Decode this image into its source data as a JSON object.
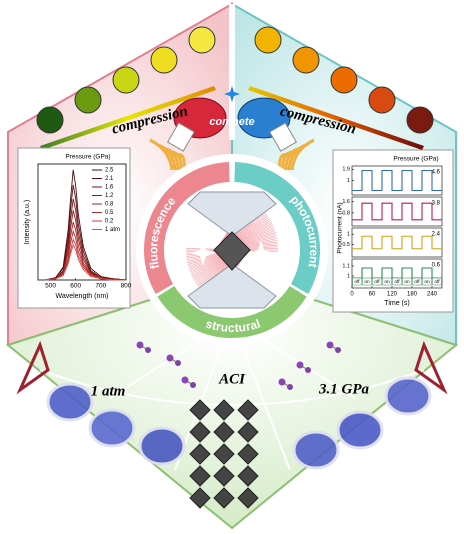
{
  "top_left": {
    "label": "compression"
  },
  "top_right": {
    "label": "compression"
  },
  "center": {
    "badge": "compete",
    "ring_left": "fluorescence",
    "ring_right": "photocurrent",
    "ring_bottom": "structural"
  },
  "bottom": {
    "left": "1 atm",
    "middle": "ACI",
    "right": "3.1 GPa"
  },
  "fluorescence_plot": {
    "type": "line",
    "legend_title": "Pressure (GPa)",
    "x_label": "Wavelength (nm)",
    "y_label": "Intensity (a.u.)",
    "xlim": [
      450,
      800
    ],
    "xticks": [
      500,
      600,
      700,
      800
    ],
    "ylim": [
      0,
      1
    ],
    "x": [
      480,
      520,
      550,
      570,
      580,
      590,
      600,
      610,
      630,
      660,
      700,
      750,
      800
    ],
    "series": [
      {
        "name": "2.5",
        "color": "#4a0a0a",
        "values": [
          0,
          0.02,
          0.11,
          0.43,
          0.71,
          0.95,
          0.81,
          0.57,
          0.29,
          0.1,
          0.03,
          0.01,
          0
        ]
      },
      {
        "name": "2.1",
        "color": "#5e0f0f",
        "values": [
          0,
          0.02,
          0.1,
          0.37,
          0.62,
          0.82,
          0.7,
          0.49,
          0.25,
          0.08,
          0.02,
          0.01,
          0
        ]
      },
      {
        "name": "1.6",
        "color": "#741414",
        "values": [
          0,
          0.01,
          0.08,
          0.32,
          0.53,
          0.7,
          0.6,
          0.42,
          0.21,
          0.07,
          0.02,
          0.01,
          0
        ]
      },
      {
        "name": "1.2",
        "color": "#8a1a1a",
        "values": [
          0,
          0.01,
          0.07,
          0.27,
          0.45,
          0.6,
          0.51,
          0.36,
          0.18,
          0.06,
          0.02,
          0.01,
          0
        ]
      },
      {
        "name": "0.8",
        "color": "#a02222",
        "values": [
          0,
          0.01,
          0.06,
          0.23,
          0.38,
          0.5,
          0.43,
          0.3,
          0.15,
          0.05,
          0.02,
          0,
          0
        ]
      },
      {
        "name": "0.5",
        "color": "#b42c2c",
        "values": [
          0,
          0.01,
          0.05,
          0.19,
          0.32,
          0.42,
          0.36,
          0.25,
          0.13,
          0.04,
          0.01,
          0,
          0
        ]
      },
      {
        "name": "0.2",
        "color": "#c83a3a",
        "values": [
          0,
          0.01,
          0.04,
          0.16,
          0.26,
          0.35,
          0.3,
          0.21,
          0.11,
          0.04,
          0.01,
          0,
          0
        ]
      },
      {
        "name": "1 atm",
        "color": "#d94a4a",
        "values": [
          0,
          0.01,
          0.04,
          0.14,
          0.23,
          0.3,
          0.26,
          0.18,
          0.09,
          0.03,
          0.01,
          0,
          0
        ]
      }
    ]
  },
  "photocurrent_plot": {
    "type": "step",
    "legend_title": "Pressure (GPa)",
    "x_label": "Time (s)",
    "y_label": "Photocurrent (nA)",
    "xlim": [
      0,
      270
    ],
    "xticks": [
      0,
      60,
      120,
      180,
      240
    ],
    "x": [
      0,
      30,
      60,
      90,
      120,
      150,
      180,
      210,
      240,
      270
    ],
    "states": [
      "off",
      "on",
      "off",
      "on",
      "off",
      "on",
      "off",
      "on",
      "off"
    ],
    "panels": [
      {
        "name": "4.6",
        "color": "#2e6ea6",
        "ylim": [
          0,
          2.0
        ],
        "yticks": [
          1.0,
          1.9
        ],
        "values": [
          0.2,
          1.8,
          0.2,
          1.8,
          0.2,
          1.8,
          0.2,
          1.8,
          0.2
        ]
      },
      {
        "name": "3.8",
        "color": "#c2185b",
        "ylim": [
          0,
          1.8
        ],
        "yticks": [
          0.8,
          1.6
        ],
        "values": [
          0.3,
          1.5,
          0.3,
          1.5,
          0.3,
          1.5,
          0.3,
          1.5,
          0.3
        ]
      },
      {
        "name": "2.4",
        "color": "#d4a017",
        "ylim": [
          0,
          1.2
        ],
        "yticks": [
          0.5,
          1.0
        ],
        "values": [
          0.3,
          0.9,
          0.3,
          0.9,
          0.3,
          0.9,
          0.3,
          0.9,
          0.3
        ]
      },
      {
        "name": "0.6",
        "color": "#2e8b57",
        "ylim": [
          0.9,
          1.15
        ],
        "yticks": [
          1.0,
          1.1
        ],
        "values": [
          0.98,
          1.08,
          0.98,
          1.08,
          0.98,
          1.08,
          0.98,
          1.08,
          0.98
        ]
      }
    ]
  }
}
